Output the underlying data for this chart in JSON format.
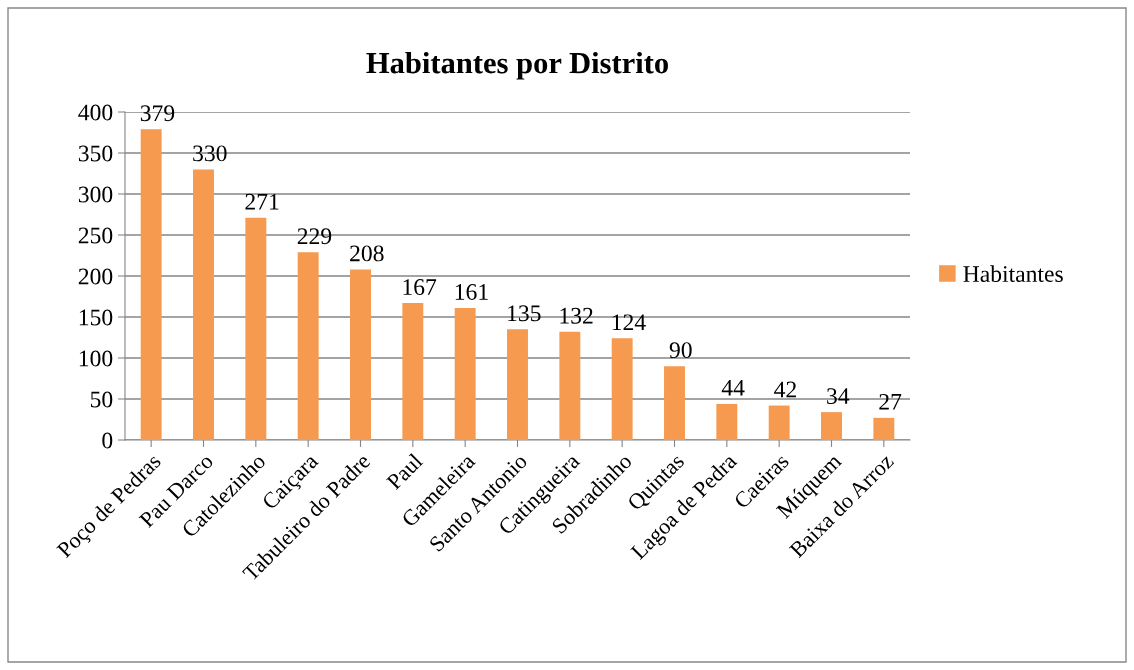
{
  "chart_data": {
    "type": "bar",
    "title": "Habitantes por Distrito",
    "categories": [
      "Poço de Pedras",
      "Pau Darco",
      "Catolezinho",
      "Caiçara",
      "Tabuleiro do Padre",
      "Paul",
      "Gameleira",
      "Santo Antonio",
      "Catingueira",
      "Sobradinho",
      "Quintas",
      "Lagoa de Pedra",
      "Caeiras",
      "Múquem",
      "Baixa do Arroz"
    ],
    "series": [
      {
        "name": "Habitantes",
        "color": "#f59a4f",
        "values": [
          379,
          330,
          271,
          229,
          208,
          167,
          161,
          135,
          132,
          124,
          90,
          44,
          42,
          34,
          27
        ]
      }
    ],
    "ylim": [
      0,
      400
    ],
    "yticks": [
      0,
      50,
      100,
      150,
      200,
      250,
      300,
      350,
      400
    ],
    "grid": "y",
    "legend": "right",
    "data_labels": true
  }
}
